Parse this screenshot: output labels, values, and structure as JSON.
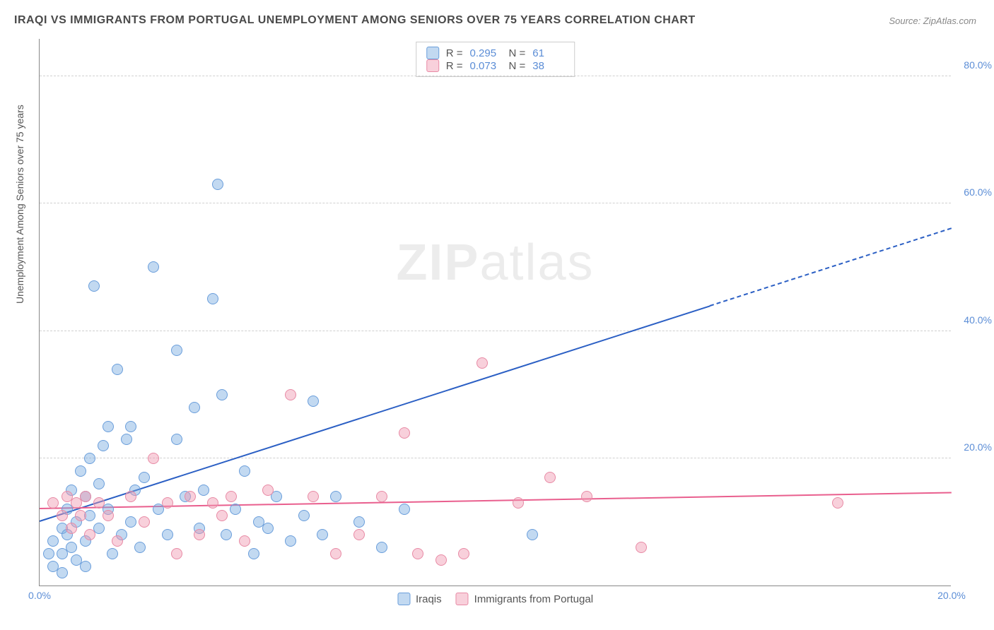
{
  "title": "IRAQI VS IMMIGRANTS FROM PORTUGAL UNEMPLOYMENT AMONG SENIORS OVER 75 YEARS CORRELATION CHART",
  "source": "Source: ZipAtlas.com",
  "y_axis_label": "Unemployment Among Seniors over 75 years",
  "watermark_bold": "ZIP",
  "watermark_light": "atlas",
  "chart": {
    "type": "scatter",
    "xlim": [
      0,
      20
    ],
    "ylim": [
      0,
      86
    ],
    "xticks": [
      {
        "v": 0,
        "label": "0.0%"
      },
      {
        "v": 20,
        "label": "20.0%"
      }
    ],
    "yticks": [
      {
        "v": 20,
        "label": "20.0%"
      },
      {
        "v": 40,
        "label": "40.0%"
      },
      {
        "v": 60,
        "label": "60.0%"
      },
      {
        "v": 80,
        "label": "80.0%"
      }
    ],
    "grid_color": "#d0d0d0",
    "axis_color": "#888888",
    "tick_label_color": "#5b8dd6",
    "background_color": "#ffffff",
    "marker_radius": 8,
    "series": [
      {
        "name": "Iraqis",
        "fill": "rgba(120,170,225,0.45)",
        "stroke": "#6a9edb",
        "trend_color": "#2b5fc4",
        "R": "0.295",
        "N": "61",
        "trend": {
          "x1": 0,
          "y1": 10,
          "x2": 20,
          "y2": 56,
          "solid_until_x": 14.7
        },
        "points": [
          [
            0.2,
            5
          ],
          [
            0.3,
            7
          ],
          [
            0.3,
            3
          ],
          [
            0.5,
            9
          ],
          [
            0.5,
            5
          ],
          [
            0.6,
            12
          ],
          [
            0.6,
            8
          ],
          [
            0.7,
            15
          ],
          [
            0.7,
            6
          ],
          [
            0.8,
            10
          ],
          [
            0.8,
            4
          ],
          [
            0.9,
            18
          ],
          [
            1.0,
            14
          ],
          [
            1.0,
            7
          ],
          [
            1.1,
            20
          ],
          [
            1.1,
            11
          ],
          [
            1.2,
            47
          ],
          [
            1.3,
            9
          ],
          [
            1.3,
            16
          ],
          [
            1.4,
            22
          ],
          [
            1.5,
            25
          ],
          [
            1.5,
            12
          ],
          [
            1.6,
            5
          ],
          [
            1.7,
            34
          ],
          [
            1.8,
            8
          ],
          [
            1.9,
            23
          ],
          [
            2.0,
            25
          ],
          [
            2.0,
            10
          ],
          [
            2.1,
            15
          ],
          [
            2.2,
            6
          ],
          [
            2.3,
            17
          ],
          [
            2.5,
            50
          ],
          [
            2.6,
            12
          ],
          [
            2.8,
            8
          ],
          [
            3.0,
            37
          ],
          [
            3.0,
            23
          ],
          [
            3.2,
            14
          ],
          [
            3.4,
            28
          ],
          [
            3.5,
            9
          ],
          [
            3.6,
            15
          ],
          [
            3.8,
            45
          ],
          [
            3.9,
            63
          ],
          [
            4.0,
            30
          ],
          [
            4.1,
            8
          ],
          [
            4.3,
            12
          ],
          [
            4.5,
            18
          ],
          [
            4.7,
            5
          ],
          [
            4.8,
            10
          ],
          [
            5.0,
            9
          ],
          [
            5.2,
            14
          ],
          [
            5.5,
            7
          ],
          [
            5.8,
            11
          ],
          [
            6.0,
            29
          ],
          [
            6.2,
            8
          ],
          [
            6.5,
            14
          ],
          [
            7.0,
            10
          ],
          [
            7.5,
            6
          ],
          [
            8.0,
            12
          ],
          [
            10.8,
            8
          ],
          [
            1.0,
            3
          ],
          [
            0.5,
            2
          ]
        ]
      },
      {
        "name": "Immigrants from Portugal",
        "fill": "rgba(240,150,175,0.45)",
        "stroke": "#e88aa5",
        "trend_color": "#e95f8e",
        "R": "0.073",
        "N": "38",
        "trend": {
          "x1": 0,
          "y1": 12,
          "x2": 20,
          "y2": 14.5,
          "solid_until_x": 20
        },
        "points": [
          [
            0.3,
            13
          ],
          [
            0.5,
            11
          ],
          [
            0.6,
            14
          ],
          [
            0.7,
            9
          ],
          [
            0.8,
            13
          ],
          [
            0.9,
            11
          ],
          [
            1.0,
            14
          ],
          [
            1.1,
            8
          ],
          [
            1.3,
            13
          ],
          [
            1.5,
            11
          ],
          [
            1.7,
            7
          ],
          [
            2.0,
            14
          ],
          [
            2.3,
            10
          ],
          [
            2.5,
            20
          ],
          [
            2.8,
            13
          ],
          [
            3.0,
            5
          ],
          [
            3.3,
            14
          ],
          [
            3.5,
            8
          ],
          [
            3.8,
            13
          ],
          [
            4.2,
            14
          ],
          [
            4.5,
            7
          ],
          [
            5.0,
            15
          ],
          [
            5.5,
            30
          ],
          [
            6.0,
            14
          ],
          [
            6.5,
            5
          ],
          [
            7.0,
            8
          ],
          [
            7.5,
            14
          ],
          [
            8.0,
            24
          ],
          [
            8.3,
            5
          ],
          [
            8.8,
            4
          ],
          [
            9.3,
            5
          ],
          [
            9.7,
            35
          ],
          [
            10.5,
            13
          ],
          [
            11.2,
            17
          ],
          [
            12.0,
            14
          ],
          [
            13.2,
            6
          ],
          [
            17.5,
            13
          ],
          [
            4.0,
            11
          ]
        ]
      }
    ]
  },
  "legend_bottom": [
    {
      "label": "Iraqis",
      "series": 0
    },
    {
      "label": "Immigrants from Portugal",
      "series": 1
    }
  ]
}
